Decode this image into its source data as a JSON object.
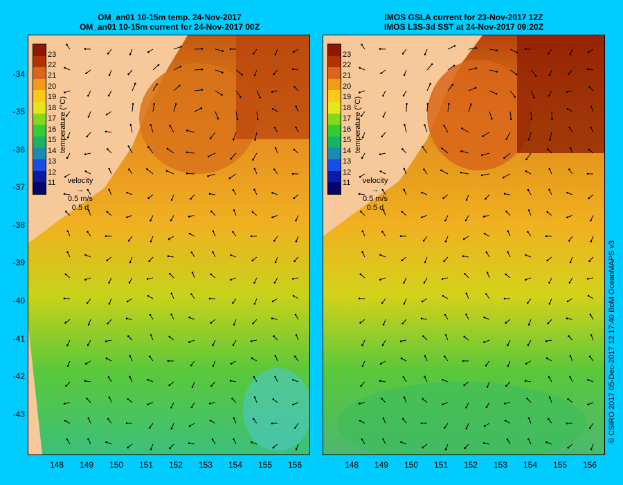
{
  "left_panel": {
    "title_line1": "OM_an01 10-15m temp. 24-Nov-2017",
    "title_line2": "OM_an01 10-15m current for 24-Nov-2017 00Z"
  },
  "right_panel": {
    "title_line1": "IMOS GSLA current for 23-Nov-2017 12Z",
    "title_line2": "IMOS L3S-3d SST at 24-Nov-2017 09:20Z"
  },
  "colorbar": {
    "label": "temperature (°C)",
    "ticks": [
      "23",
      "22",
      "21",
      "20",
      "19",
      "18",
      "17",
      "16",
      "15",
      "14",
      "13",
      "12",
      "11"
    ],
    "colors": [
      "#8b1a00",
      "#b33300",
      "#d9661a",
      "#f29a1a",
      "#ffc81a",
      "#e6e61a",
      "#80d91a",
      "#33cc33",
      "#1ab366",
      "#1a8cb3",
      "#1a4de6",
      "#0d1aa6",
      "#05056b"
    ]
  },
  "velocity_legend": {
    "title": "velocity",
    "speed": "0.5 m/s",
    "duration": "0.5 d"
  },
  "lat_labels": [
    "-34",
    "-35",
    "-36",
    "-37",
    "-38",
    "-39",
    "-40",
    "-41",
    "-42",
    "-43"
  ],
  "lon_labels": [
    "148",
    "149",
    "150",
    "151",
    "152",
    "153",
    "154",
    "155",
    "156"
  ],
  "credit": "© CSIRO 2017   05-Dec-2017 12:17:40 BoM OceanMAPS v3",
  "colors": {
    "background": "#00ccff",
    "land": "#f7c99a",
    "warm": "#e08a1a",
    "cool": "#4fc84a"
  }
}
